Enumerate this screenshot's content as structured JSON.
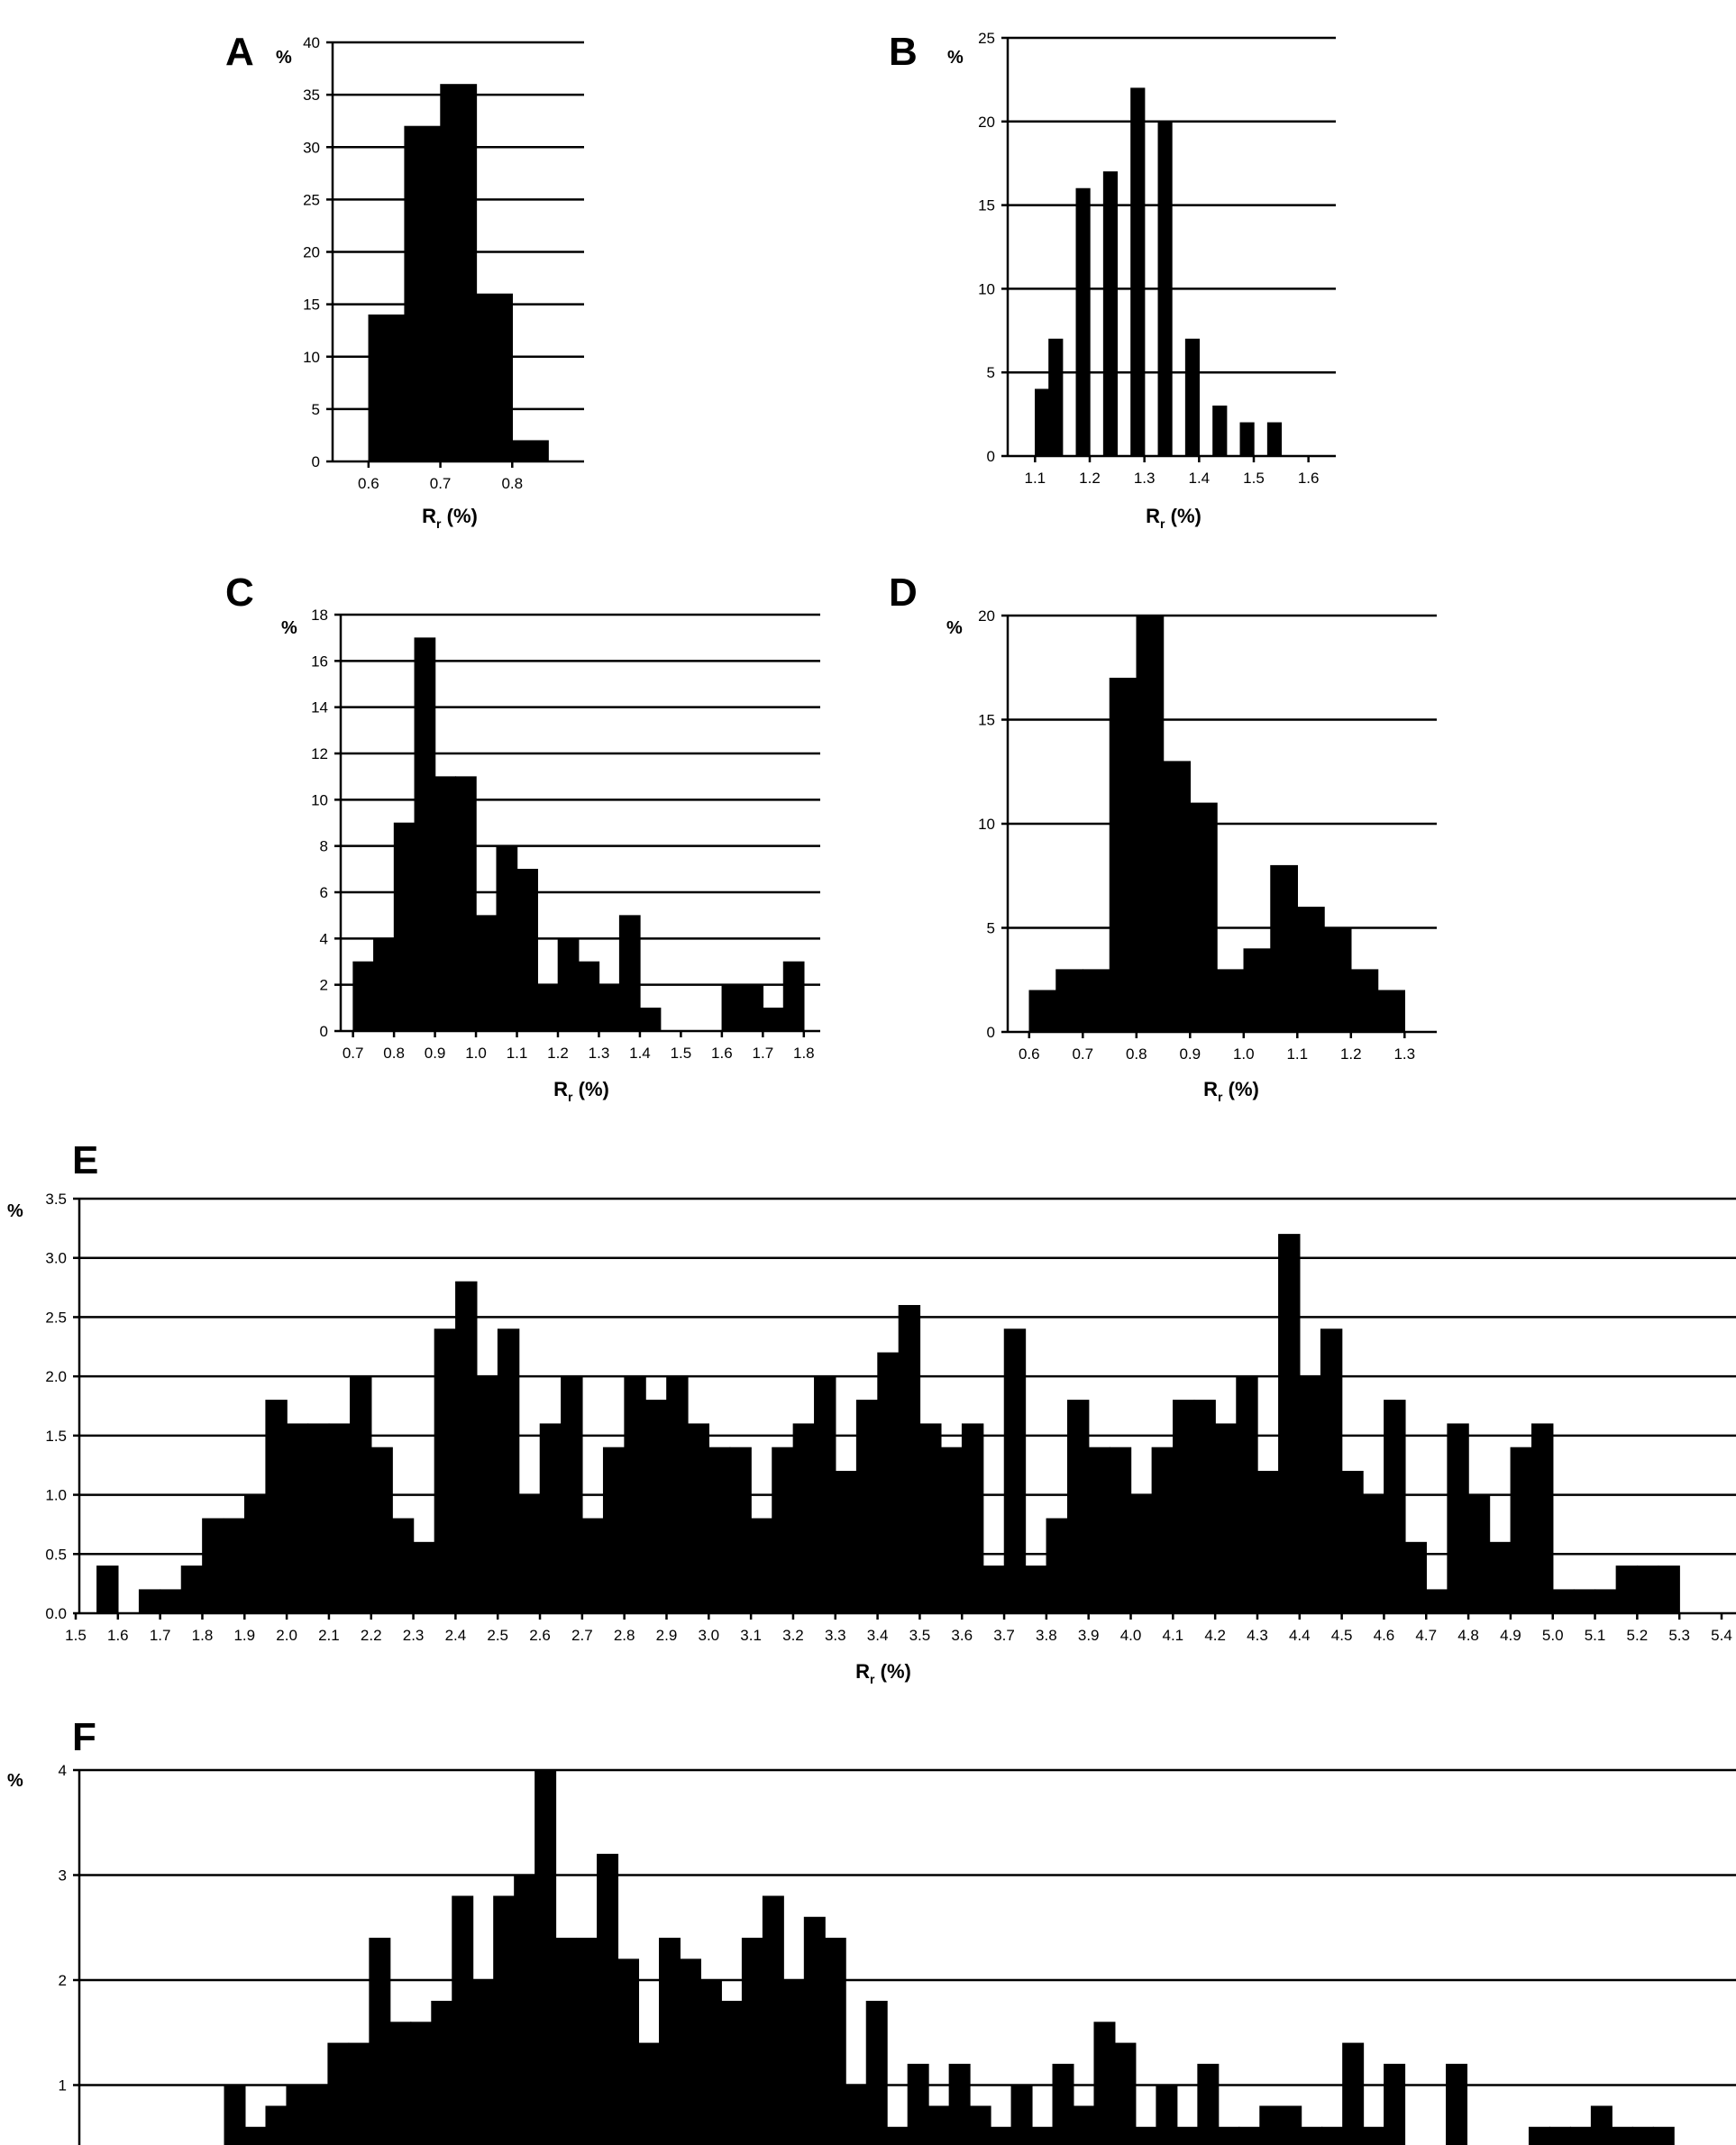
{
  "chart_data": [
    {
      "id": "A",
      "type": "bar",
      "panel_label": "A",
      "y_unit": "%",
      "xlabel": "R",
      "xlabel_sub": "r",
      "xlabel_unit": " (%)",
      "ylim": [
        0,
        40
      ],
      "yticks": [
        0,
        5,
        10,
        15,
        20,
        25,
        30,
        35,
        40
      ],
      "y_decimals": 0,
      "x_range": [
        0.55,
        0.9
      ],
      "xticks": [
        0.6,
        0.7,
        0.8
      ],
      "x_decimals": 1,
      "bin_width": 0.05,
      "bins": [
        [
          0.6,
          14
        ],
        [
          0.65,
          32
        ],
        [
          0.7,
          36
        ],
        [
          0.75,
          16
        ],
        [
          0.8,
          2
        ]
      ]
    },
    {
      "id": "B",
      "type": "bar",
      "panel_label": "B",
      "y_unit": "%",
      "xlabel": "R",
      "xlabel_sub": "r",
      "xlabel_unit": " (%)",
      "ylim": [
        0,
        25
      ],
      "yticks": [
        0,
        5,
        10,
        15,
        20,
        25
      ],
      "y_decimals": 0,
      "x_range": [
        1.05,
        1.65
      ],
      "xticks": [
        1.1,
        1.2,
        1.3,
        1.4,
        1.5,
        1.6
      ],
      "x_decimals": 1,
      "bin_width": 0.025,
      "bins": [
        [
          1.1,
          4
        ],
        [
          1.125,
          7
        ],
        [
          1.175,
          16
        ],
        [
          1.225,
          17
        ],
        [
          1.275,
          22
        ],
        [
          1.325,
          20
        ],
        [
          1.375,
          7
        ],
        [
          1.425,
          3
        ],
        [
          1.475,
          2
        ],
        [
          1.525,
          2
        ]
      ]
    },
    {
      "id": "C",
      "type": "bar",
      "panel_label": "C",
      "y_unit": "%",
      "xlabel": "R",
      "xlabel_sub": "r",
      "xlabel_unit": " (%)",
      "ylim": [
        0,
        18
      ],
      "yticks": [
        0,
        2,
        4,
        6,
        8,
        10,
        12,
        14,
        16,
        18
      ],
      "y_decimals": 0,
      "x_range": [
        0.67,
        1.84
      ],
      "xticks": [
        0.7,
        0.8,
        0.9,
        1.0,
        1.1,
        1.2,
        1.3,
        1.4,
        1.5,
        1.6,
        1.7,
        1.8
      ],
      "x_decimals": 1,
      "bin_width": 0.05,
      "bins": [
        [
          0.7,
          3
        ],
        [
          0.75,
          4
        ],
        [
          0.8,
          9
        ],
        [
          0.85,
          17
        ],
        [
          0.9,
          11
        ],
        [
          0.95,
          11
        ],
        [
          1.0,
          5
        ],
        [
          1.05,
          8
        ],
        [
          1.1,
          7
        ],
        [
          1.15,
          2
        ],
        [
          1.2,
          4
        ],
        [
          1.25,
          3
        ],
        [
          1.3,
          2
        ],
        [
          1.35,
          5
        ],
        [
          1.4,
          1
        ],
        [
          1.6,
          2
        ],
        [
          1.65,
          2
        ],
        [
          1.7,
          1
        ],
        [
          1.75,
          3
        ]
      ]
    },
    {
      "id": "D",
      "type": "bar",
      "panel_label": "D",
      "y_unit": "%",
      "xlabel": "R",
      "xlabel_sub": "r",
      "xlabel_unit": " (%)",
      "ylim": [
        0,
        20
      ],
      "yticks": [
        0,
        5,
        10,
        15,
        20
      ],
      "y_decimals": 0,
      "x_range": [
        0.56,
        1.36
      ],
      "xticks": [
        0.6,
        0.7,
        0.8,
        0.9,
        1.0,
        1.1,
        1.2,
        1.3
      ],
      "x_decimals": 1,
      "bin_width": 0.05,
      "bins": [
        [
          0.6,
          2
        ],
        [
          0.65,
          3
        ],
        [
          0.7,
          3
        ],
        [
          0.75,
          17
        ],
        [
          0.8,
          20
        ],
        [
          0.85,
          13
        ],
        [
          0.9,
          11
        ],
        [
          0.95,
          3
        ],
        [
          1.0,
          4
        ],
        [
          1.05,
          8
        ],
        [
          1.1,
          6
        ],
        [
          1.15,
          5
        ],
        [
          1.2,
          3
        ],
        [
          1.25,
          2
        ]
      ]
    },
    {
      "id": "E",
      "type": "bar",
      "panel_label": "E",
      "y_unit": "%",
      "xlabel": "R",
      "xlabel_sub": "r",
      "xlabel_unit": " (%)",
      "ylim": [
        0,
        3.5
      ],
      "yticks": [
        0,
        0.5,
        1.0,
        1.5,
        2.0,
        2.5,
        3.0,
        3.5
      ],
      "y_decimals": 1,
      "x_range": [
        1.5,
        5.4
      ],
      "xticks": [
        1.5,
        1.6,
        1.7,
        1.8,
        1.9,
        2.0,
        2.1,
        2.2,
        2.3,
        2.4,
        2.5,
        2.6,
        2.7,
        2.8,
        2.9,
        3.0,
        3.1,
        3.2,
        3.3,
        3.4,
        3.5,
        3.6,
        3.7,
        3.8,
        3.9,
        4.0,
        4.1,
        4.2,
        4.3,
        4.4,
        4.5,
        4.6,
        4.7,
        4.8,
        4.9,
        5.0,
        5.1,
        5.2,
        5.3,
        5.4
      ],
      "x_decimals": 1,
      "bin_width": 0.05,
      "bins": [
        [
          1.55,
          0.4
        ],
        [
          1.65,
          0.2
        ],
        [
          1.7,
          0.2
        ],
        [
          1.75,
          0.4
        ],
        [
          1.8,
          0.8
        ],
        [
          1.85,
          0.8
        ],
        [
          1.9,
          1.0
        ],
        [
          1.95,
          1.8
        ],
        [
          2.0,
          1.6
        ],
        [
          2.05,
          1.6
        ],
        [
          2.1,
          1.6
        ],
        [
          2.15,
          2.0
        ],
        [
          2.2,
          1.4
        ],
        [
          2.25,
          0.8
        ],
        [
          2.3,
          0.6
        ],
        [
          2.35,
          2.4
        ],
        [
          2.4,
          2.8
        ],
        [
          2.45,
          2.0
        ],
        [
          2.5,
          2.4
        ],
        [
          2.55,
          1.0
        ],
        [
          2.6,
          1.6
        ],
        [
          2.65,
          2.0
        ],
        [
          2.7,
          0.8
        ],
        [
          2.75,
          1.4
        ],
        [
          2.8,
          2.0
        ],
        [
          2.85,
          1.8
        ],
        [
          2.9,
          2.0
        ],
        [
          2.95,
          1.6
        ],
        [
          3.0,
          1.4
        ],
        [
          3.05,
          1.4
        ],
        [
          3.1,
          0.8
        ],
        [
          3.15,
          1.4
        ],
        [
          3.2,
          1.6
        ],
        [
          3.25,
          2.0
        ],
        [
          3.3,
          1.2
        ],
        [
          3.35,
          1.8
        ],
        [
          3.4,
          2.2
        ],
        [
          3.45,
          2.6
        ],
        [
          3.5,
          1.6
        ],
        [
          3.55,
          1.4
        ],
        [
          3.6,
          1.6
        ],
        [
          3.65,
          0.4
        ],
        [
          3.7,
          2.4
        ],
        [
          3.75,
          0.4
        ],
        [
          3.8,
          0.8
        ],
        [
          3.85,
          1.8
        ],
        [
          3.9,
          1.4
        ],
        [
          3.95,
          1.4
        ],
        [
          4.0,
          1.0
        ],
        [
          4.05,
          1.4
        ],
        [
          4.1,
          1.8
        ],
        [
          4.15,
          1.8
        ],
        [
          4.2,
          1.6
        ],
        [
          4.25,
          2.0
        ],
        [
          4.3,
          1.2
        ],
        [
          4.35,
          3.2
        ],
        [
          4.4,
          2.0
        ],
        [
          4.45,
          2.4
        ],
        [
          4.5,
          1.2
        ],
        [
          4.55,
          1.0
        ],
        [
          4.6,
          1.8
        ],
        [
          4.65,
          0.6
        ],
        [
          4.7,
          0.2
        ],
        [
          4.75,
          1.6
        ],
        [
          4.8,
          1.0
        ],
        [
          4.85,
          0.6
        ],
        [
          4.9,
          1.4
        ],
        [
          4.95,
          1.6
        ],
        [
          5.0,
          0.2
        ],
        [
          5.05,
          0.2
        ],
        [
          5.1,
          0.2
        ],
        [
          5.15,
          0.4
        ],
        [
          5.2,
          0.4
        ],
        [
          5.25,
          0.4
        ]
      ]
    },
    {
      "id": "F",
      "type": "bar",
      "panel_label": "F",
      "y_unit": "%",
      "ylim": [
        0,
        4
      ],
      "yticks": [
        1,
        2,
        3,
        4
      ],
      "y_decimals": 0,
      "x_range": [
        0,
        1
      ],
      "bin_width": 0.0125,
      "bins": [
        [
          0.0875,
          1.0
        ],
        [
          0.1,
          0.6
        ],
        [
          0.1125,
          0.8
        ],
        [
          0.125,
          1.0
        ],
        [
          0.1375,
          1.0
        ],
        [
          0.15,
          1.4
        ],
        [
          0.1625,
          1.4
        ],
        [
          0.175,
          2.4
        ],
        [
          0.1875,
          1.6
        ],
        [
          0.2,
          1.6
        ],
        [
          0.2125,
          1.8
        ],
        [
          0.225,
          2.8
        ],
        [
          0.2375,
          2.0
        ],
        [
          0.25,
          2.8
        ],
        [
          0.2625,
          3.0
        ],
        [
          0.275,
          4.0
        ],
        [
          0.2875,
          2.4
        ],
        [
          0.3,
          2.4
        ],
        [
          0.3125,
          3.2
        ],
        [
          0.325,
          2.2
        ],
        [
          0.3375,
          1.4
        ],
        [
          0.35,
          2.4
        ],
        [
          0.3625,
          2.2
        ],
        [
          0.375,
          2.0
        ],
        [
          0.3875,
          1.8
        ],
        [
          0.4,
          2.4
        ],
        [
          0.4125,
          2.8
        ],
        [
          0.425,
          2.0
        ],
        [
          0.4375,
          2.6
        ],
        [
          0.45,
          2.4
        ],
        [
          0.4625,
          1.0
        ],
        [
          0.475,
          1.8
        ],
        [
          0.4875,
          0.6
        ],
        [
          0.5,
          1.2
        ],
        [
          0.5125,
          0.8
        ],
        [
          0.525,
          1.2
        ],
        [
          0.5375,
          0.8
        ],
        [
          0.55,
          0.6
        ],
        [
          0.5625,
          1.0
        ],
        [
          0.575,
          0.6
        ],
        [
          0.5875,
          1.2
        ],
        [
          0.6,
          0.8
        ],
        [
          0.6125,
          1.6
        ],
        [
          0.625,
          1.4
        ],
        [
          0.6375,
          0.6
        ],
        [
          0.65,
          1.0
        ],
        [
          0.6625,
          0.6
        ],
        [
          0.675,
          1.2
        ],
        [
          0.6875,
          0.6
        ],
        [
          0.7,
          0.6
        ],
        [
          0.7125,
          0.8
        ],
        [
          0.725,
          0.8
        ],
        [
          0.7375,
          0.6
        ],
        [
          0.75,
          0.6
        ],
        [
          0.7625,
          1.4
        ],
        [
          0.775,
          0.6
        ],
        [
          0.7875,
          1.2
        ],
        [
          0.8,
          0.4
        ],
        [
          0.8125,
          0.4
        ],
        [
          0.825,
          1.2
        ],
        [
          0.8375,
          0.4
        ],
        [
          0.85,
          0.4
        ],
        [
          0.8625,
          0.4
        ],
        [
          0.875,
          0.6
        ],
        [
          0.8875,
          0.6
        ],
        [
          0.9,
          0.6
        ],
        [
          0.9125,
          0.8
        ],
        [
          0.925,
          0.6
        ],
        [
          0.9375,
          0.6
        ],
        [
          0.95,
          0.6
        ],
        [
          0.9625,
          0.4
        ],
        [
          0.975,
          0.4
        ],
        [
          0.9875,
          0.4
        ]
      ]
    }
  ]
}
